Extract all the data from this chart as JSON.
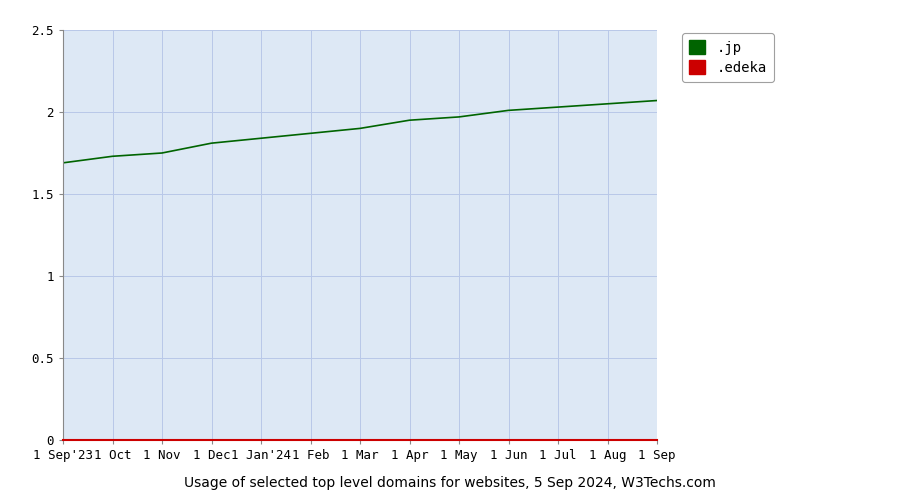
{
  "title": "Usage of selected top level domains for websites, 5 Sep 2024, W3Techs.com",
  "background_color": "#ffffff",
  "plot_bg_color": "#dde8f5",
  "x_labels": [
    "1 Sep'23",
    "1 Oct",
    "1 Nov",
    "1 Dec",
    "1 Jan'24",
    "1 Feb",
    "1 Mar",
    "1 Apr",
    "1 May",
    "1 Jun",
    "1 Jul",
    "1 Aug",
    "1 Sep"
  ],
  "y_ticks": [
    0,
    0.5,
    1,
    1.5,
    2,
    2.5
  ],
  "ylim": [
    0,
    2.5
  ],
  "jp_values": [
    1.69,
    1.73,
    1.75,
    1.81,
    1.84,
    1.87,
    1.9,
    1.95,
    1.97,
    2.01,
    2.03,
    2.05,
    2.07
  ],
  "edeka_values": [
    0.0,
    0.0,
    0.0,
    0.0,
    0.0,
    0.0,
    0.0,
    0.0,
    0.0,
    0.0,
    0.0,
    0.0,
    0.0
  ],
  "jp_color": "#006400",
  "edeka_color": "#cc0000",
  "legend_labels": [
    ".jp",
    ".edeka"
  ],
  "grid_color": "#b8c8e8",
  "bottom_line_color": "#cc0000",
  "title_fontsize": 10,
  "tick_fontsize": 9,
  "legend_fontsize": 10
}
